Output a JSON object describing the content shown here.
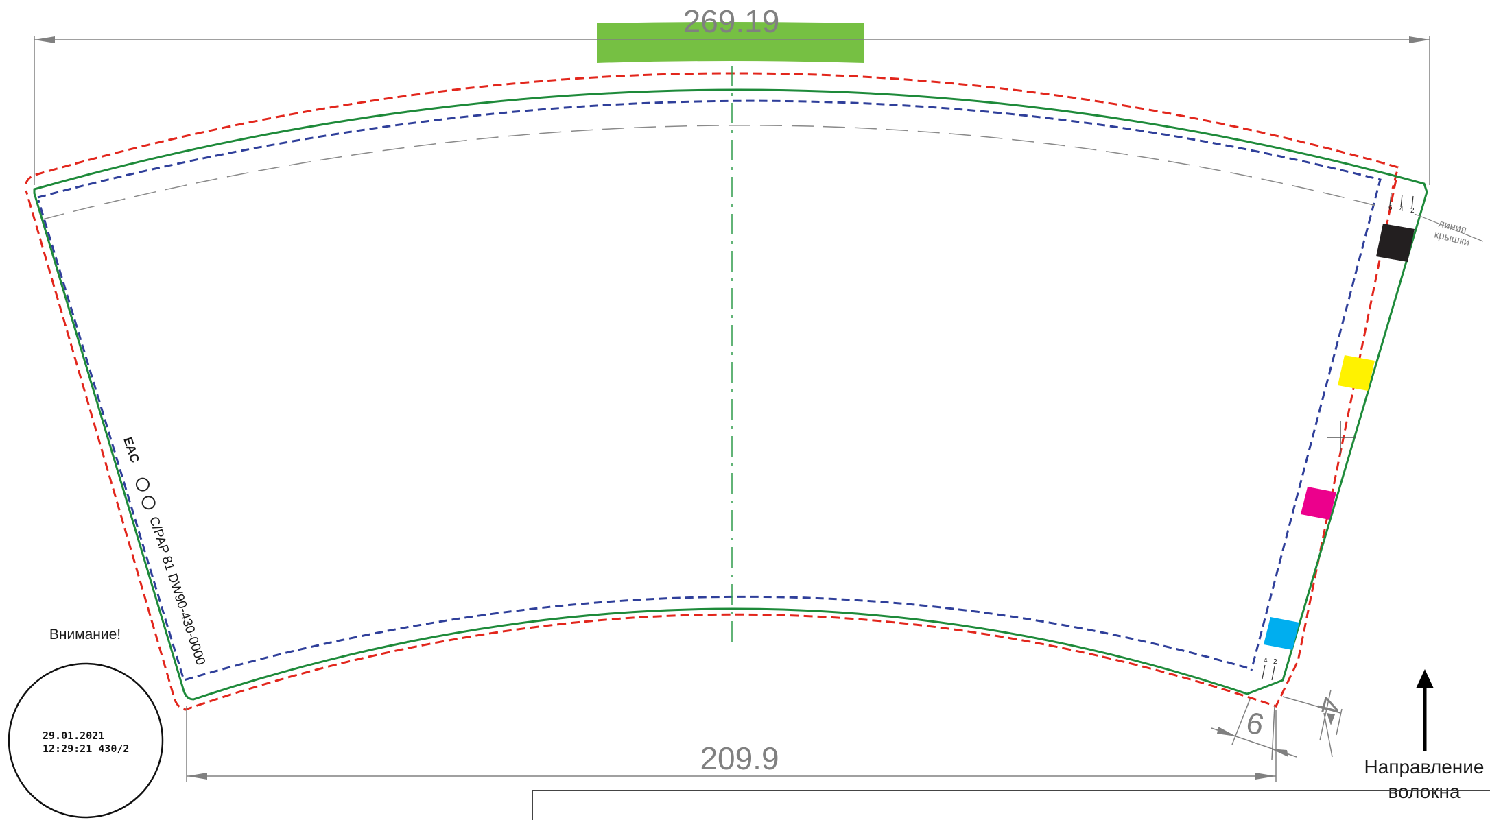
{
  "dimensions": {
    "top_width": "269.19",
    "bottom_width": "209.9",
    "side_offset_a": "6",
    "side_offset_b": "4"
  },
  "margin_label": "Внимание!",
  "stamp": {
    "date": "29.01.2021",
    "time_code": "12:29:21 430/2"
  },
  "lid_line_label": {
    "line1": "линия",
    "line2": "крышки"
  },
  "fiber_direction": {
    "line1": "Направление",
    "line2": "волокна"
  },
  "product_code": "C/PAP 81  DW90-430-0000",
  "certification_mark": "EAC",
  "small_ticks_top": [
    "6",
    "4",
    "2"
  ],
  "small_ticks_bottom": [
    "4",
    "2"
  ],
  "colors": {
    "cut_line": "#e2261c",
    "bleed_line": "#2f3f9a",
    "trim_line": "#1e8a3a",
    "center_line": "#2e9b4a",
    "green_bar": "#76c043",
    "dimension": "#808080",
    "ink_black": "#231f20",
    "ink_yellow": "#fff200",
    "ink_magenta": "#ec008c",
    "ink_cyan": "#00aeef"
  },
  "color_patches": [
    "black",
    "yellow",
    "magenta",
    "cyan"
  ]
}
